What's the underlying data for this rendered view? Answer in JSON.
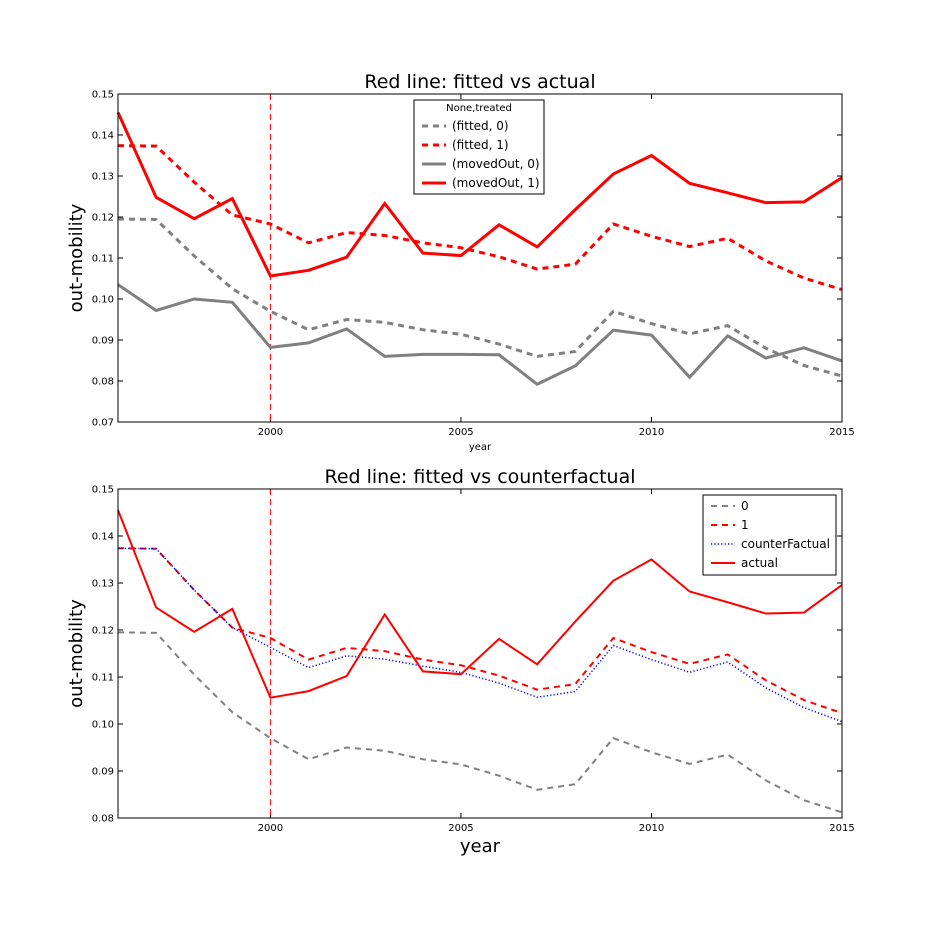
{
  "chart_data": [
    {
      "type": "line",
      "title": "Red line: fitted vs actual",
      "xlabel": "year",
      "ylabel": "out-mobility",
      "xlim": [
        1996,
        2015
      ],
      "ylim": [
        0.07,
        0.15
      ],
      "xticks": [
        2000,
        2005,
        2010,
        2015
      ],
      "xtick_labels": [
        "2000",
        "2005",
        "2010",
        "2015"
      ],
      "yticks": [
        0.07,
        0.08,
        0.09,
        0.1,
        0.11,
        0.12,
        0.13,
        0.14,
        0.15
      ],
      "ytick_labels": [
        "0.07",
        "0.08",
        "0.09",
        "0.10",
        "0.11",
        "0.12",
        "0.13",
        "0.14",
        "0.15"
      ],
      "vline": 2000,
      "legend_title": "None,treated",
      "legend_position": "top-center",
      "x": [
        1996,
        1997,
        1998,
        1999,
        2000,
        2001,
        2002,
        2003,
        2004,
        2005,
        2006,
        2007,
        2008,
        2009,
        2010,
        2011,
        2012,
        2013,
        2014,
        2015
      ],
      "series": [
        {
          "name": "(fitted, 0)",
          "color": "#808080",
          "style": "dashed",
          "values": [
            0.1195,
            0.1194,
            0.1105,
            0.1025,
            0.097,
            0.0925,
            0.095,
            0.0943,
            0.0925,
            0.0914,
            0.089,
            0.086,
            0.0872,
            0.097,
            0.094,
            0.0915,
            0.0935,
            0.088,
            0.0838,
            0.0812
          ]
        },
        {
          "name": "(fitted, 1)",
          "color": "#ff0000",
          "style": "dashed",
          "values": [
            0.1374,
            0.1373,
            0.1285,
            0.1205,
            0.1183,
            0.1137,
            0.1162,
            0.1155,
            0.1137,
            0.1125,
            0.1103,
            0.1073,
            0.1085,
            0.1183,
            0.1153,
            0.1128,
            0.1148,
            0.1093,
            0.1051,
            0.1023
          ]
        },
        {
          "name": "(movedOut, 0)",
          "color": "#808080",
          "style": "solid",
          "values": [
            0.1035,
            0.0972,
            0.1,
            0.0992,
            0.0882,
            0.0893,
            0.0927,
            0.086,
            0.0865,
            0.0865,
            0.0864,
            0.0792,
            0.0837,
            0.0924,
            0.0912,
            0.0809,
            0.091,
            0.0856,
            0.0881,
            0.0849
          ]
        },
        {
          "name": "(movedOut, 1)",
          "color": "#ff0000",
          "style": "solid",
          "values": [
            0.1455,
            0.1248,
            0.1196,
            0.1245,
            0.1056,
            0.107,
            0.1102,
            0.1233,
            0.1112,
            0.1106,
            0.1181,
            0.1127,
            0.1218,
            0.1305,
            0.135,
            0.1282,
            0.1259,
            0.1235,
            0.1237,
            0.1296
          ]
        }
      ]
    },
    {
      "type": "line",
      "title": "Red line: fitted vs counterfactual",
      "xlabel": "year",
      "ylabel": "out-mobility",
      "xlim": [
        1996,
        2015
      ],
      "ylim": [
        0.08,
        0.15
      ],
      "xticks": [
        2000,
        2005,
        2010,
        2015
      ],
      "xtick_labels": [
        "2000",
        "2005",
        "2010",
        "2015"
      ],
      "yticks": [
        0.08,
        0.09,
        0.1,
        0.11,
        0.12,
        0.13,
        0.14,
        0.15
      ],
      "ytick_labels": [
        "0.08",
        "0.09",
        "0.10",
        "0.11",
        "0.12",
        "0.13",
        "0.14",
        "0.15"
      ],
      "vline": 2000,
      "legend_position": "top-right",
      "x": [
        1996,
        1997,
        1998,
        1999,
        2000,
        2001,
        2002,
        2003,
        2004,
        2005,
        2006,
        2007,
        2008,
        2009,
        2010,
        2011,
        2012,
        2013,
        2014,
        2015
      ],
      "series": [
        {
          "name": "0",
          "color": "#808080",
          "style": "dashed",
          "values": [
            0.1195,
            0.1194,
            0.1105,
            0.1025,
            0.097,
            0.0925,
            0.095,
            0.0943,
            0.0925,
            0.0914,
            0.089,
            0.086,
            0.0872,
            0.097,
            0.094,
            0.0915,
            0.0935,
            0.088,
            0.0838,
            0.0812
          ]
        },
        {
          "name": "1",
          "color": "#ff0000",
          "style": "dashed",
          "values": [
            0.1374,
            0.1373,
            0.1285,
            0.1205,
            0.1183,
            0.1137,
            0.1162,
            0.1155,
            0.1137,
            0.1125,
            0.1103,
            0.1073,
            0.1085,
            0.1183,
            0.1153,
            0.1128,
            0.1148,
            0.1093,
            0.1051,
            0.1023
          ]
        },
        {
          "name": "counterFactual",
          "color": "#0000ff",
          "style": "dotted",
          "values": [
            0.1374,
            0.1373,
            0.1285,
            0.1205,
            0.1163,
            0.112,
            0.1145,
            0.1138,
            0.1123,
            0.111,
            0.1087,
            0.1057,
            0.1069,
            0.1167,
            0.1137,
            0.111,
            0.1132,
            0.1077,
            0.1035,
            0.1005
          ]
        },
        {
          "name": "actual",
          "color": "#ff0000",
          "style": "solid",
          "values": [
            0.1455,
            0.1248,
            0.1196,
            0.1245,
            0.1056,
            0.107,
            0.1102,
            0.1233,
            0.1112,
            0.1106,
            0.1181,
            0.1127,
            0.1218,
            0.1305,
            0.135,
            0.1282,
            0.1259,
            0.1235,
            0.1237,
            0.1296
          ]
        }
      ]
    }
  ]
}
